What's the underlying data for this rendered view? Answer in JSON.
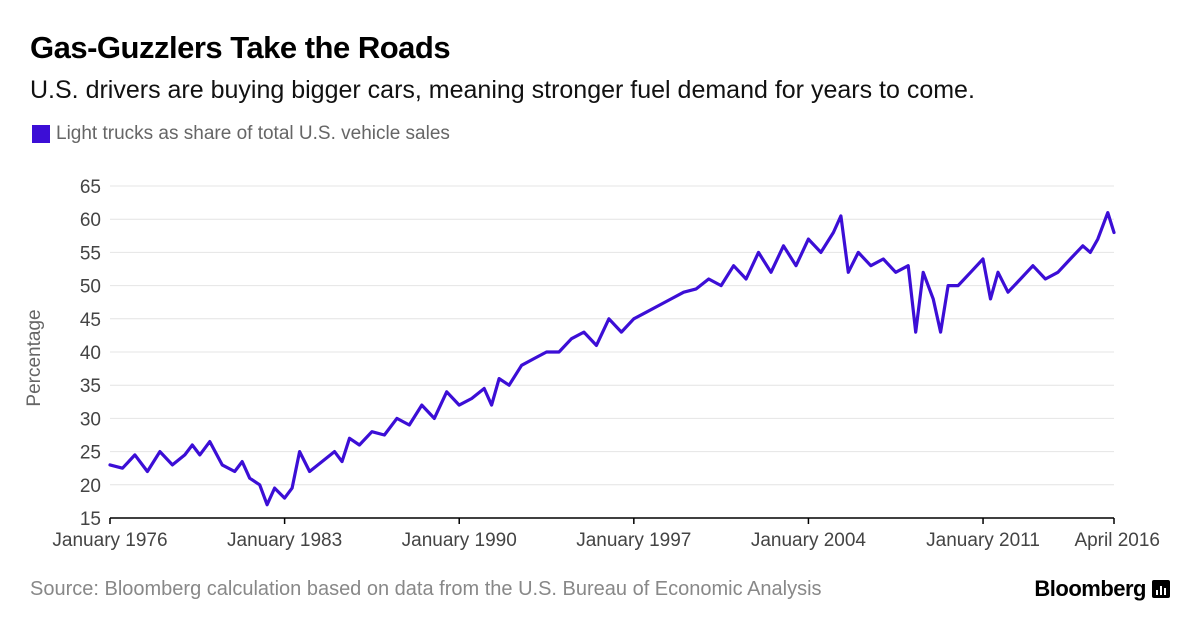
{
  "title": "Gas-Guzzlers Take the Roads",
  "subtitle": "U.S. drivers are buying bigger cars, meaning stronger fuel demand for years to come.",
  "source": "Source: Bloomberg calculation based on data from the U.S. Bureau of Economic Analysis",
  "brand": "Bloomberg",
  "colors": {
    "series": "#3c0ed6",
    "grid": "#e4e4e4",
    "axis": "#000000",
    "tick_text": "#444444"
  },
  "chart_data": {
    "type": "line",
    "title": "Gas-Guzzlers Take the Roads",
    "ylabel": "Percentage",
    "xlabel": "",
    "ylim": [
      15,
      65
    ],
    "xlim": [
      1976.0,
      2016.25
    ],
    "y_ticks": [
      15,
      20,
      25,
      30,
      35,
      40,
      45,
      50,
      55,
      60,
      65
    ],
    "x_ticks": [
      {
        "value": 1976.0,
        "label": "January 1976"
      },
      {
        "value": 1983.0,
        "label": "January 1983"
      },
      {
        "value": 1990.0,
        "label": "January 1990"
      },
      {
        "value": 1997.0,
        "label": "January 1997"
      },
      {
        "value": 2004.0,
        "label": "January 2004"
      },
      {
        "value": 2011.0,
        "label": "January 2011"
      },
      {
        "value": 2016.25,
        "label": "April 2016"
      }
    ],
    "grid": true,
    "legend": "top-left",
    "series": [
      {
        "name": "Light trucks as share of total U.S. vehicle sales",
        "x": [
          1976.0,
          1976.5,
          1977.0,
          1977.5,
          1978.0,
          1978.5,
          1979.0,
          1979.3,
          1979.6,
          1980.0,
          1980.5,
          1981.0,
          1981.3,
          1981.6,
          1982.0,
          1982.3,
          1982.6,
          1983.0,
          1983.3,
          1983.6,
          1984.0,
          1984.5,
          1985.0,
          1985.3,
          1985.6,
          1986.0,
          1986.5,
          1987.0,
          1987.5,
          1988.0,
          1988.5,
          1989.0,
          1989.5,
          1990.0,
          1990.5,
          1991.0,
          1991.3,
          1991.6,
          1992.0,
          1992.5,
          1993.0,
          1993.5,
          1994.0,
          1994.5,
          1995.0,
          1995.5,
          1996.0,
          1996.5,
          1997.0,
          1997.5,
          1998.0,
          1998.5,
          1999.0,
          1999.5,
          2000.0,
          2000.5,
          2001.0,
          2001.5,
          2002.0,
          2002.5,
          2003.0,
          2003.5,
          2004.0,
          2004.5,
          2005.0,
          2005.3,
          2005.6,
          2006.0,
          2006.5,
          2007.0,
          2007.5,
          2008.0,
          2008.3,
          2008.6,
          2009.0,
          2009.3,
          2009.6,
          2010.0,
          2010.5,
          2011.0,
          2011.3,
          2011.6,
          2012.0,
          2012.5,
          2013.0,
          2013.5,
          2014.0,
          2014.5,
          2015.0,
          2015.3,
          2015.6,
          2016.0,
          2016.25
        ],
        "values": [
          23,
          22.5,
          24.5,
          22,
          25,
          23,
          24.5,
          26,
          24.5,
          26.5,
          23,
          22,
          23.5,
          21,
          20,
          17,
          19.5,
          18,
          19.5,
          25,
          22,
          23.5,
          25,
          23.5,
          27,
          26,
          28,
          27.5,
          30,
          29,
          32,
          30,
          34,
          32,
          33,
          34.5,
          32,
          36,
          35,
          38,
          39,
          40,
          40,
          42,
          43,
          41,
          45,
          43,
          45,
          46,
          47,
          48,
          49,
          49.5,
          51,
          50,
          53,
          51,
          55,
          52,
          56,
          53,
          57,
          55,
          58,
          60.5,
          52,
          55,
          53,
          54,
          52,
          53,
          43,
          52,
          48,
          43,
          50,
          50,
          52,
          54,
          48,
          52,
          49,
          51,
          53,
          51,
          52,
          54,
          56,
          55,
          57,
          61,
          58
        ]
      }
    ]
  }
}
